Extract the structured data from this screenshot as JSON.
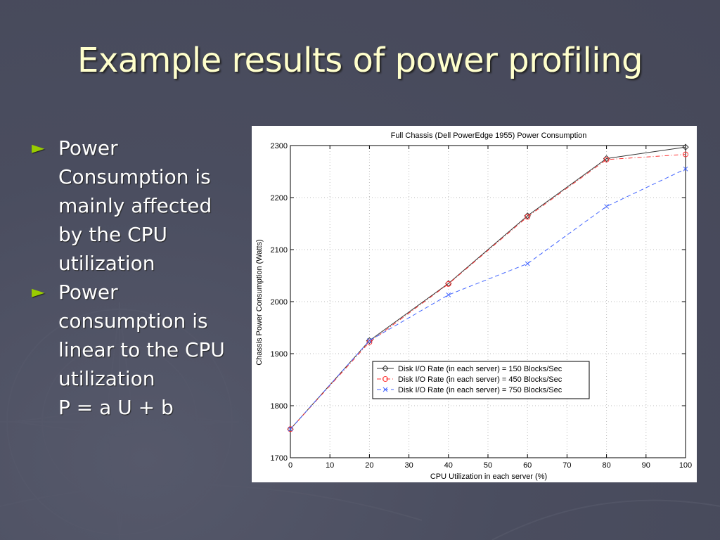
{
  "slide": {
    "title": "Example results of power profiling",
    "bullets": [
      {
        "marker": "►",
        "lines": [
          "Power",
          "Consumption is",
          "mainly affected",
          "by the CPU",
          "utilization"
        ]
      },
      {
        "marker": "►",
        "lines": [
          "Power",
          "consumption is",
          "linear to the CPU",
          "utilization",
          "P = a U + b"
        ]
      }
    ],
    "colors": {
      "background": "#4a4d5f",
      "title": "#ffffcc",
      "bullet_marker": "#99cc00",
      "text": "#ffffff"
    }
  },
  "chart_data": {
    "type": "line",
    "title": "Full Chassis (Dell PowerEdge 1955) Power Consumption",
    "xlabel": "CPU Utilization in each server (%)",
    "ylabel": "Chassis Power Consumption (Watts)",
    "xlim": [
      0,
      100
    ],
    "ylim": [
      1700,
      2300
    ],
    "xticks": [
      0,
      10,
      20,
      30,
      40,
      50,
      60,
      70,
      80,
      90,
      100
    ],
    "yticks": [
      1700,
      1800,
      1900,
      2000,
      2100,
      2200,
      2300
    ],
    "grid": true,
    "legend_position": "lower-right",
    "x": [
      0,
      20,
      40,
      60,
      80,
      100
    ],
    "series": [
      {
        "name": "Disk I/O Rate (in each server) = 150 Blocks/Sec",
        "values": [
          1755,
          1925,
          2035,
          2165,
          2275,
          2297
        ],
        "color": "#333333",
        "line_style": "solid",
        "marker": "diamond"
      },
      {
        "name": "Disk I/O Rate (in each server) = 450 Blocks/Sec",
        "values": [
          1755,
          1922,
          2034,
          2163,
          2273,
          2283
        ],
        "color": "#ff3333",
        "line_style": "dash-dot",
        "marker": "circle"
      },
      {
        "name": "Disk I/O Rate (in each server) = 750 Blocks/Sec",
        "values": [
          1755,
          1925,
          2013,
          2073,
          2183,
          2255
        ],
        "color": "#4466ff",
        "line_style": "dashed",
        "marker": "x"
      }
    ]
  }
}
